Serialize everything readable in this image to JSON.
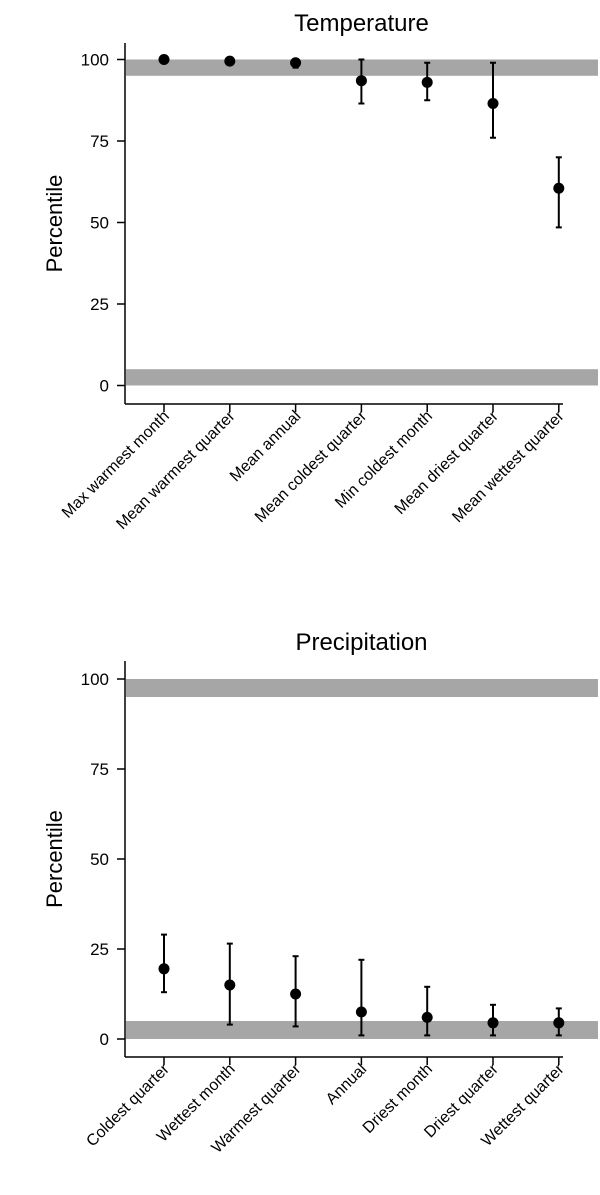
{
  "chart_data": [
    {
      "type": "scatter",
      "title": "Temperature",
      "ylabel": "Percentile",
      "xlabel": "",
      "ylim": [
        -5,
        105
      ],
      "yticks": [
        0,
        25,
        50,
        75,
        100
      ],
      "reference_bands": [
        [
          95,
          100
        ],
        [
          0,
          5
        ]
      ],
      "band_color": "#a6a6a6",
      "point_color": "#000000",
      "categories": [
        "Max warmest month",
        "Mean warmest quarter",
        "Mean annual",
        "Mean coldest quarter",
        "Min coldest month",
        "Mean driest quarter",
        "Mean wettest quarter"
      ],
      "values": [
        100,
        99.5,
        99,
        93.5,
        93,
        86.5,
        60.5
      ],
      "error_low": [
        100,
        99.5,
        97.5,
        86.5,
        87.5,
        76,
        48.5
      ],
      "error_high": [
        100,
        99.5,
        99.5,
        100,
        99,
        99,
        70
      ]
    },
    {
      "type": "scatter",
      "title": "Precipitation",
      "ylabel": "Percentile",
      "xlabel": "",
      "ylim": [
        -5,
        105
      ],
      "yticks": [
        0,
        25,
        50,
        75,
        100
      ],
      "reference_bands": [
        [
          95,
          100
        ],
        [
          0,
          5
        ]
      ],
      "band_color": "#a6a6a6",
      "point_color": "#000000",
      "categories": [
        "Coldest quarter",
        "Wettest month",
        "Warmest quarter",
        "Annual",
        "Driest month",
        "Driest quarter",
        "Wettest quarter"
      ],
      "values": [
        19.5,
        15,
        12.5,
        7.5,
        6,
        4.5,
        4.5
      ],
      "error_low": [
        13,
        4,
        3.5,
        1,
        1,
        1,
        1
      ],
      "error_high": [
        29,
        26.5,
        23,
        22,
        14.5,
        9.5,
        8.5
      ]
    }
  ]
}
